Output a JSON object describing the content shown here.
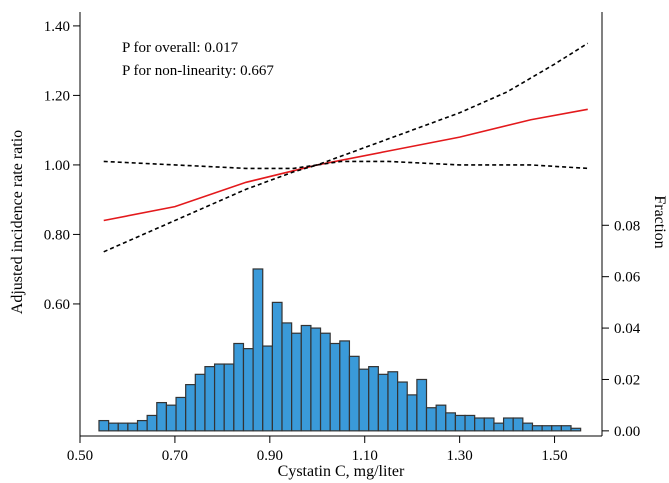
{
  "chart_data": {
    "type": "line",
    "xlabel": "Cystatin C, mg/liter",
    "ylabel_left": "Adjusted incidence rate ratio",
    "ylabel_right": "Fraction",
    "xlim": [
      0.5,
      1.6
    ],
    "xticks": [
      0.5,
      0.7,
      0.9,
      1.1,
      1.3,
      1.5
    ],
    "xtick_labels": [
      "0.50",
      "0.70",
      "0.90",
      "1.10",
      "1.30",
      "1.50"
    ],
    "ylim_left": [
      0.22,
      1.44
    ],
    "yticks_left": [
      0.6,
      0.8,
      1.0,
      1.2,
      1.4
    ],
    "ytick_labels_left": [
      "0.60",
      "0.80",
      "1.00",
      "1.20",
      "1.40"
    ],
    "ylim_right": [
      -0.002,
      0.163
    ],
    "yticks_right": [
      0.0,
      0.02,
      0.04,
      0.06,
      0.08
    ],
    "ytick_labels_right": [
      "0.00",
      "0.02",
      "0.04",
      "0.06",
      "0.08"
    ],
    "annotations": [
      "P for overall: 0.017",
      "P for non-linearity: 0.667"
    ],
    "series": [
      {
        "role": "estimate",
        "style": "solid",
        "color": "#e3191c",
        "x": [
          0.55,
          0.7,
          0.85,
          1.0,
          1.15,
          1.3,
          1.45,
          1.57
        ],
        "y": [
          0.84,
          0.88,
          0.95,
          1.0,
          1.04,
          1.08,
          1.13,
          1.16
        ]
      },
      {
        "role": "upper-ci",
        "style": "dashed",
        "color": "#000000",
        "x": [
          0.55,
          0.7,
          0.85,
          0.95,
          1.0,
          1.1,
          1.2,
          1.3,
          1.4,
          1.5,
          1.57
        ],
        "y": [
          1.01,
          1.0,
          0.99,
          0.99,
          1.0,
          1.05,
          1.1,
          1.15,
          1.21,
          1.29,
          1.35
        ]
      },
      {
        "role": "lower-ci",
        "style": "dashed",
        "color": "#000000",
        "x": [
          0.55,
          0.65,
          0.75,
          0.85,
          0.95,
          1.0,
          1.05,
          1.15,
          1.3,
          1.45,
          1.57
        ],
        "y": [
          0.75,
          0.81,
          0.87,
          0.93,
          0.98,
          1.0,
          1.01,
          1.01,
          1.0,
          1.0,
          0.99
        ]
      }
    ],
    "histogram": {
      "color": "#3a9ad9",
      "edge_color": "#333333",
      "x_start": 0.54,
      "bin_width": 0.0203,
      "fractions": [
        0.004,
        0.003,
        0.003,
        0.003,
        0.004,
        0.006,
        0.011,
        0.01,
        0.013,
        0.018,
        0.022,
        0.025,
        0.026,
        0.026,
        0.034,
        0.032,
        0.063,
        0.033,
        0.05,
        0.042,
        0.038,
        0.041,
        0.04,
        0.038,
        0.034,
        0.035,
        0.029,
        0.024,
        0.025,
        0.022,
        0.023,
        0.019,
        0.014,
        0.02,
        0.009,
        0.01,
        0.007,
        0.006,
        0.006,
        0.005,
        0.005,
        0.003,
        0.005,
        0.005,
        0.003,
        0.002,
        0.002,
        0.002,
        0.002,
        0.001
      ]
    }
  }
}
